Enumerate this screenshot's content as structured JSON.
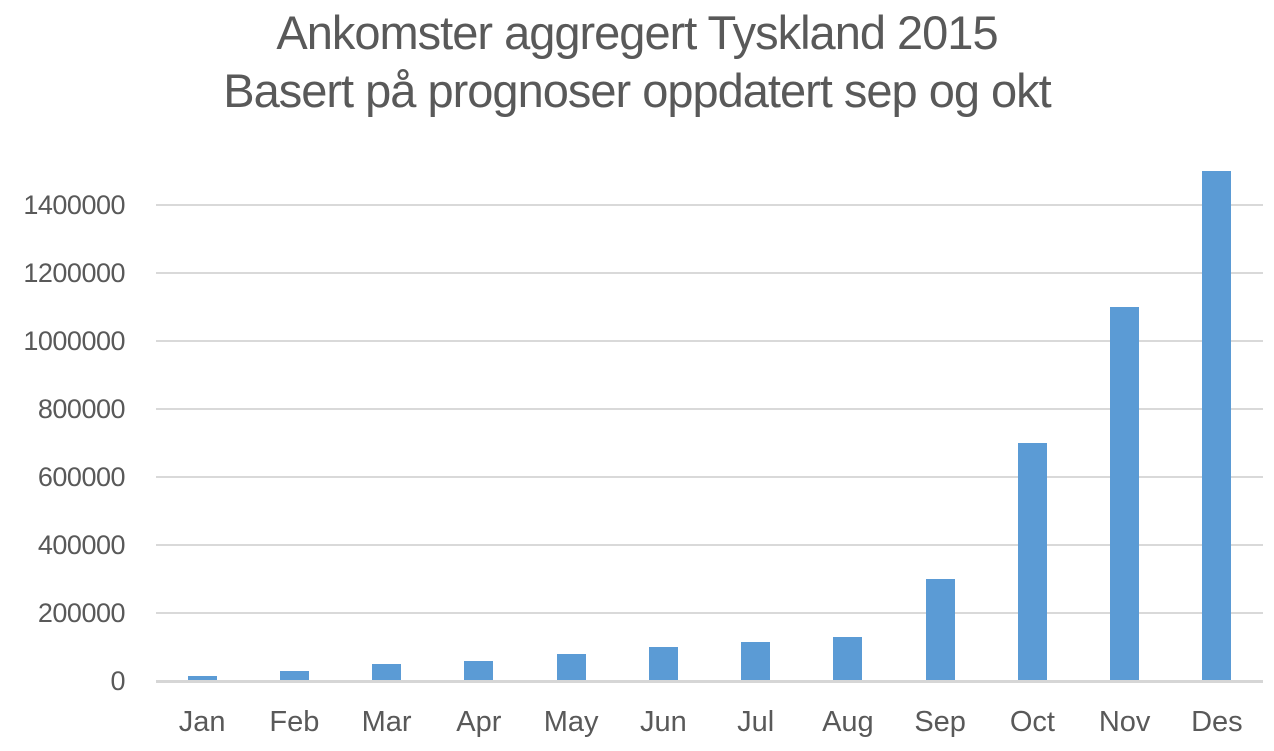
{
  "chart_title": {
    "line1": "Ankomster aggregert Tyskland 2015",
    "line2": "Basert på prognoser oppdatert sep og okt"
  },
  "chart_data": {
    "type": "bar",
    "title": "Ankomster aggregert Tyskland 2015\nBasert på prognoser oppdatert sep og okt",
    "categories": [
      "Jan",
      "Feb",
      "Mar",
      "Apr",
      "May",
      "Jun",
      "Jul",
      "Aug",
      "Sep",
      "Oct",
      "Nov",
      "Des"
    ],
    "values": [
      15000,
      30000,
      50000,
      60000,
      80000,
      100000,
      115000,
      130000,
      300000,
      700000,
      1100000,
      1500000
    ],
    "series_name": "Ankomster",
    "xlabel": "",
    "ylabel": "",
    "ylim": [
      0,
      1500000
    ],
    "ytick_interval": 200000,
    "yticks": [
      0,
      200000,
      400000,
      600000,
      800000,
      1000000,
      1200000,
      1400000
    ],
    "ytick_labels": [
      "0",
      "200000",
      "400000",
      "600000",
      "800000",
      "1000000",
      "1200000",
      "1400000"
    ],
    "grid": true,
    "legend": false,
    "bar_color": "#5b9bd5"
  },
  "colors": {
    "bar": "#5b9bd5",
    "text": "#595959",
    "gridline": "#d9d9d9",
    "background": "#ffffff"
  }
}
